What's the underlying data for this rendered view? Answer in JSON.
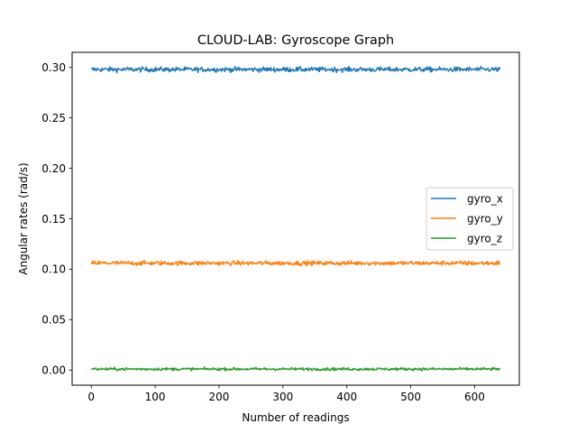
{
  "chart_data": {
    "type": "line",
    "title": "CLOUD-LAB: Gyroscope Graph",
    "xlabel": "Number of readings",
    "ylabel": "Angular rates (rad/s)",
    "xlim": [
      -30,
      670
    ],
    "ylim": [
      -0.015,
      0.315
    ],
    "xticks": [
      0,
      100,
      200,
      300,
      400,
      500,
      600
    ],
    "xtick_labels": [
      "0",
      "100",
      "200",
      "300",
      "400",
      "500",
      "600"
    ],
    "yticks": [
      0.0,
      0.05,
      0.1,
      0.15,
      0.2,
      0.25,
      0.3
    ],
    "ytick_labels": [
      "0.00",
      "0.05",
      "0.10",
      "0.15",
      "0.20",
      "0.25",
      "0.30"
    ],
    "grid": false,
    "legend_position": "center-right",
    "num_points": 641,
    "series": [
      {
        "name": "gyro_x",
        "color": "#1f77b4",
        "mean": 0.298,
        "noise": 0.0012
      },
      {
        "name": "gyro_y",
        "color": "#ff7f0e",
        "mean": 0.106,
        "noise": 0.0011
      },
      {
        "name": "gyro_z",
        "color": "#2ca02c",
        "mean": 0.001,
        "noise": 0.0007
      }
    ]
  }
}
